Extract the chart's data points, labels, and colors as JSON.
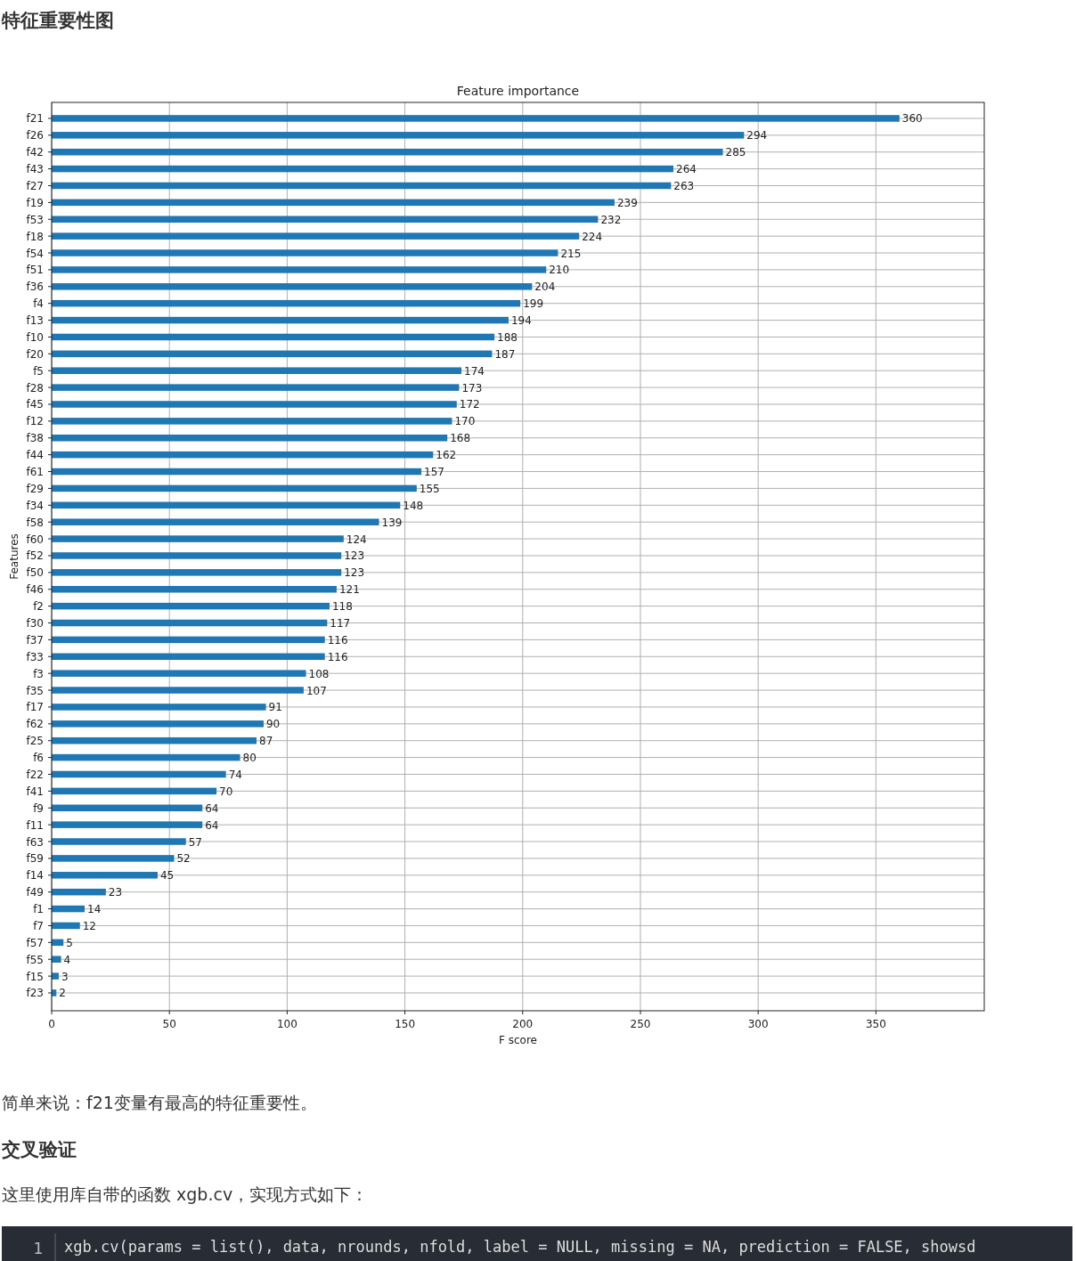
{
  "chart_data": {
    "type": "bar",
    "orientation": "horizontal",
    "title": "Feature importance",
    "xlabel": "F score",
    "ylabel": "Features",
    "categories": [
      "f21",
      "f26",
      "f42",
      "f43",
      "f27",
      "f19",
      "f53",
      "f18",
      "f54",
      "f51",
      "f36",
      "f4",
      "f13",
      "f10",
      "f20",
      "f5",
      "f28",
      "f45",
      "f12",
      "f38",
      "f44",
      "f61",
      "f29",
      "f34",
      "f58",
      "f60",
      "f52",
      "f50",
      "f46",
      "f2",
      "f30",
      "f37",
      "f33",
      "f3",
      "f35",
      "f17",
      "f62",
      "f25",
      "f6",
      "f22",
      "f41",
      "f9",
      "f11",
      "f63",
      "f59",
      "f14",
      "f49",
      "f1",
      "f7",
      "f57",
      "f55",
      "f15",
      "f23"
    ],
    "values": [
      360,
      294,
      285,
      264,
      263,
      239,
      232,
      224,
      215,
      210,
      204,
      199,
      194,
      188,
      187,
      174,
      173,
      172,
      170,
      168,
      162,
      157,
      155,
      148,
      139,
      124,
      123,
      123,
      121,
      118,
      117,
      116,
      116,
      108,
      107,
      91,
      90,
      87,
      80,
      74,
      70,
      64,
      64,
      57,
      52,
      45,
      23,
      14,
      12,
      5,
      4,
      3,
      2
    ],
    "color": "#1f77b4",
    "data_labels": true,
    "grid": true,
    "xlim": [
      0,
      396
    ],
    "xticks": [
      0,
      50,
      100,
      150,
      200,
      250,
      300,
      350
    ],
    "annotations": [
      "特征重要性图",
      "简单来说：f21变量有最高的特征重要性。",
      "交叉验证",
      "这里使用库自带的函数 xgb.cv，实现方式如下：",
      "1",
      "xgb.cv(params = list(), data, nrounds, nfold, label = NULL, missing = NA, prediction = FALSE, showsd"
    ]
  }
}
